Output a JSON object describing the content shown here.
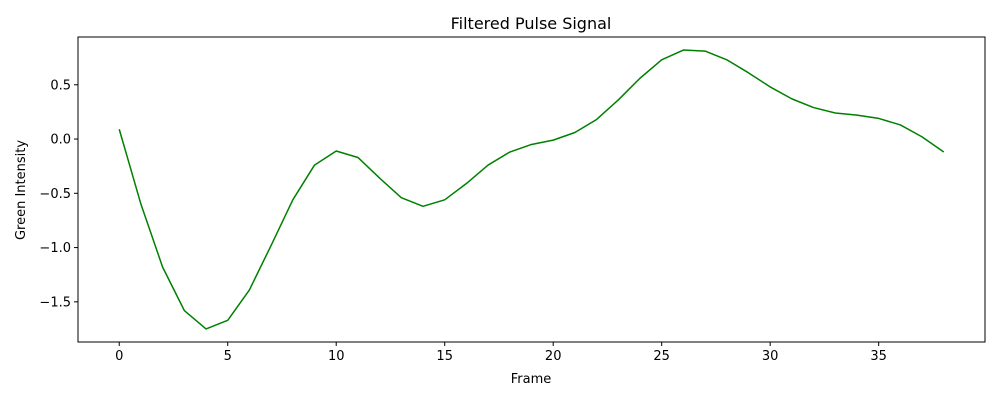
{
  "chart_data": {
    "type": "line",
    "title": "Filtered Pulse Signal",
    "xlabel": "Frame",
    "ylabel": "Green Intensity",
    "xlim": [
      -1.9,
      39.9
    ],
    "ylim": [
      -1.87,
      0.94
    ],
    "xticks": [
      0,
      5,
      10,
      15,
      20,
      25,
      30,
      35
    ],
    "yticks": [
      -1.5,
      -1.0,
      -0.5,
      0.0,
      0.5
    ],
    "ytick_labels": [
      "−1.5",
      "−1.0",
      "−0.5",
      "0.0",
      "0.5"
    ],
    "grid": false,
    "legend": null,
    "series": [
      {
        "color": "#008000",
        "x": [
          0,
          1,
          2,
          3,
          4,
          5,
          6,
          7,
          8,
          9,
          10,
          11,
          12,
          13,
          14,
          15,
          16,
          17,
          18,
          19,
          20,
          21,
          22,
          23,
          24,
          25,
          26,
          27,
          28,
          29,
          30,
          31,
          32,
          33,
          34,
          35,
          36,
          37,
          38
        ],
        "y": [
          0.09,
          -0.6,
          -1.18,
          -1.58,
          -1.75,
          -1.67,
          -1.39,
          -0.98,
          -0.56,
          -0.24,
          -0.11,
          -0.17,
          -0.36,
          -0.54,
          -0.62,
          -0.56,
          -0.41,
          -0.24,
          -0.12,
          -0.05,
          -0.01,
          0.06,
          0.18,
          0.36,
          0.56,
          0.73,
          0.82,
          0.81,
          0.73,
          0.61,
          0.48,
          0.37,
          0.29,
          0.24,
          0.22,
          0.19,
          0.13,
          0.02,
          -0.12
        ]
      }
    ]
  }
}
